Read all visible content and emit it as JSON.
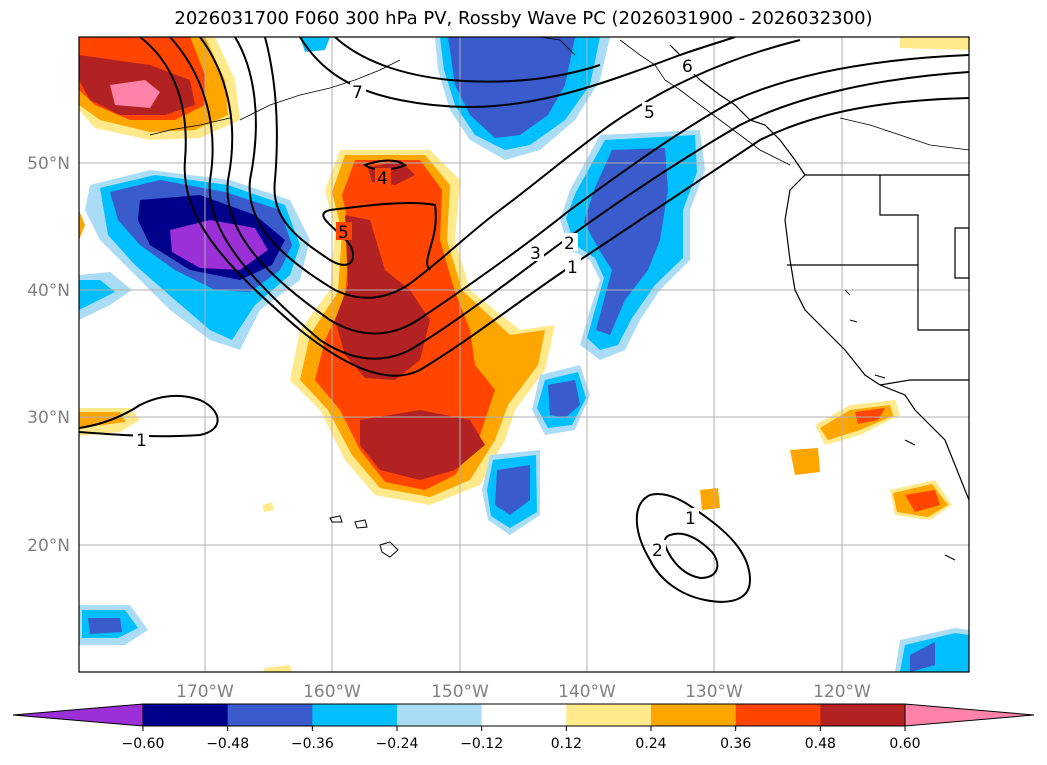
{
  "title": "2026031700 F060 300 hPa PV, Rossby Wave PC (2026031900 - 2026032300)",
  "map": {
    "lon_range": [
      -180,
      -110
    ],
    "lat_range": [
      10,
      60
    ],
    "lat_ticks": [
      "50°N",
      "40°N",
      "30°N",
      "20°N"
    ],
    "lon_ticks": [
      "170°W",
      "160°W",
      "150°W",
      "140°W",
      "130°W",
      "120°W"
    ],
    "gridlines": true
  },
  "contours": {
    "line_color": "#000000",
    "labels": [
      "1",
      "1",
      "1",
      "2",
      "2",
      "3",
      "4",
      "5",
      "5",
      "6",
      "7"
    ]
  },
  "colorbar": {
    "colors": [
      "#9b30d9",
      "#00008b",
      "#3a5bcc",
      "#00bfff",
      "#aadcf5",
      "#ffffff",
      "#ffe98a",
      "#ffa500",
      "#ff4500",
      "#b22222",
      "#ff82a9"
    ],
    "tick_labels": [
      "−0.60",
      "−0.48",
      "−0.36",
      "−0.24",
      "−0.12",
      "0.12",
      "0.24",
      "0.36",
      "0.48",
      "0.60"
    ]
  }
}
